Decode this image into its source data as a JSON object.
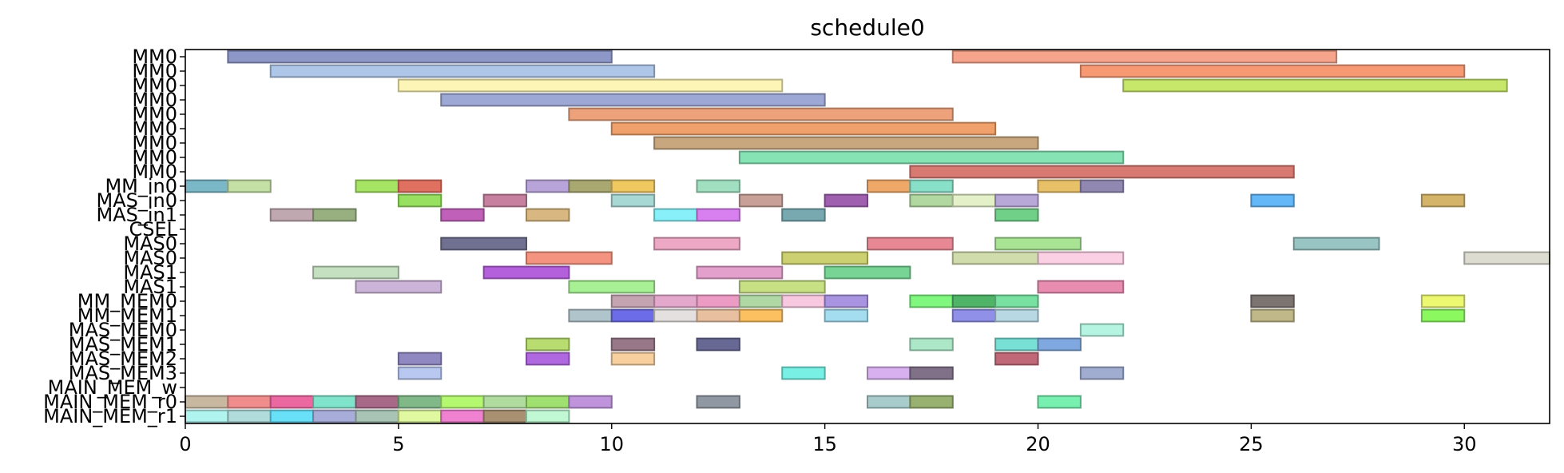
{
  "chart_data": {
    "type": "gantt",
    "title": "schedule0",
    "xlim": [
      0,
      32
    ],
    "x_ticks": [
      0,
      5,
      10,
      15,
      20,
      25,
      30
    ],
    "rows": [
      "MM0",
      "MM0",
      "MM0",
      "MM0",
      "MM0",
      "MM0",
      "MM0",
      "MM0",
      "MM0",
      "MM_in0",
      "MAS_in0",
      "MAS_in1",
      "CSEL",
      "MAS0",
      "MAS0",
      "MAS1",
      "MAS1",
      "MM_MEM0",
      "MM_MEM1",
      "MAS_MEM0",
      "MAS_MEM1",
      "MAS_MEM2",
      "MAS_MEM3",
      "MAIN_MEM_w",
      "MAIN_MEM_r0",
      "MAIN_MEM_r1"
    ],
    "tasks": [
      {
        "row": 0,
        "start": 1,
        "end": 10,
        "color": "#8e98c8"
      },
      {
        "row": 0,
        "start": 18,
        "end": 27,
        "color": "#f7a48c"
      },
      {
        "row": 1,
        "start": 2,
        "end": 11,
        "color": "#aec7e8"
      },
      {
        "row": 1,
        "start": 21,
        "end": 30,
        "color": "#f79a74"
      },
      {
        "row": 2,
        "start": 5,
        "end": 14,
        "color": "#fdf5b5"
      },
      {
        "row": 2,
        "start": 22,
        "end": 31,
        "color": "#c6e76a"
      },
      {
        "row": 3,
        "start": 6,
        "end": 15,
        "color": "#9ea8d4"
      },
      {
        "row": 4,
        "start": 9,
        "end": 18,
        "color": "#eda27c"
      },
      {
        "row": 5,
        "start": 10,
        "end": 19,
        "color": "#f0a06a"
      },
      {
        "row": 6,
        "start": 11,
        "end": 20,
        "color": "#c8a67e"
      },
      {
        "row": 7,
        "start": 13,
        "end": 22,
        "color": "#86e4b4"
      },
      {
        "row": 8,
        "start": 17,
        "end": 26,
        "color": "#d87a72"
      },
      {
        "row": 9,
        "start": 0,
        "end": 1,
        "color": "#7ab8c8"
      },
      {
        "row": 9,
        "start": 1,
        "end": 2,
        "color": "#c4e0a4"
      },
      {
        "row": 9,
        "start": 4,
        "end": 5,
        "color": "#a6e464"
      },
      {
        "row": 9,
        "start": 5,
        "end": 6,
        "color": "#e07060"
      },
      {
        "row": 9,
        "start": 8,
        "end": 9,
        "color": "#b8a4d8"
      },
      {
        "row": 9,
        "start": 9,
        "end": 10,
        "color": "#a8a870"
      },
      {
        "row": 9,
        "start": 10,
        "end": 11,
        "color": "#f0c860"
      },
      {
        "row": 9,
        "start": 12,
        "end": 13,
        "color": "#a0e0c0"
      },
      {
        "row": 9,
        "start": 16,
        "end": 17,
        "color": "#f0a868"
      },
      {
        "row": 9,
        "start": 17,
        "end": 18,
        "color": "#88e0c8"
      },
      {
        "row": 9,
        "start": 20,
        "end": 21,
        "color": "#e8c068"
      },
      {
        "row": 9,
        "start": 21,
        "end": 22,
        "color": "#9088b0"
      },
      {
        "row": 10,
        "start": 5,
        "end": 6,
        "color": "#98e060"
      },
      {
        "row": 10,
        "start": 7,
        "end": 8,
        "color": "#c880a0"
      },
      {
        "row": 10,
        "start": 10,
        "end": 11,
        "color": "#a8d8d4"
      },
      {
        "row": 10,
        "start": 13,
        "end": 14,
        "color": "#c8a098"
      },
      {
        "row": 10,
        "start": 15,
        "end": 16,
        "color": "#a060b0"
      },
      {
        "row": 10,
        "start": 17,
        "end": 18,
        "color": "#b0d8a0"
      },
      {
        "row": 10,
        "start": 18,
        "end": 19,
        "color": "#e4f0c8"
      },
      {
        "row": 10,
        "start": 19,
        "end": 20,
        "color": "#b8a8d8"
      },
      {
        "row": 10,
        "start": 25,
        "end": 26,
        "color": "#64b8f8"
      },
      {
        "row": 10,
        "start": 29,
        "end": 30,
        "color": "#d4b468"
      },
      {
        "row": 11,
        "start": 2,
        "end": 3,
        "color": "#c0a8b0"
      },
      {
        "row": 11,
        "start": 3,
        "end": 4,
        "color": "#98b080"
      },
      {
        "row": 11,
        "start": 6,
        "end": 7,
        "color": "#c060b8"
      },
      {
        "row": 11,
        "start": 8,
        "end": 9,
        "color": "#d8b880"
      },
      {
        "row": 11,
        "start": 11,
        "end": 12,
        "color": "#88f0f8"
      },
      {
        "row": 11,
        "start": 12,
        "end": 13,
        "color": "#d880f0"
      },
      {
        "row": 11,
        "start": 14,
        "end": 15,
        "color": "#78a8b0"
      },
      {
        "row": 11,
        "start": 19,
        "end": 20,
        "color": "#70d088"
      },
      {
        "row": 13,
        "start": 6,
        "end": 8,
        "color": "#707090"
      },
      {
        "row": 13,
        "start": 11,
        "end": 13,
        "color": "#eca8c4"
      },
      {
        "row": 13,
        "start": 16,
        "end": 18,
        "color": "#e88894"
      },
      {
        "row": 13,
        "start": 19,
        "end": 21,
        "color": "#a8e494"
      },
      {
        "row": 13,
        "start": 26,
        "end": 28,
        "color": "#98c4c4"
      },
      {
        "row": 14,
        "start": 8,
        "end": 10,
        "color": "#f49480"
      },
      {
        "row": 14,
        "start": 14,
        "end": 16,
        "color": "#ccd070"
      },
      {
        "row": 14,
        "start": 18,
        "end": 20,
        "color": "#d0dcac"
      },
      {
        "row": 14,
        "start": 20,
        "end": 22,
        "color": "#fcd0e4"
      },
      {
        "row": 14,
        "start": 30,
        "end": 32,
        "color": "#dcdcd0"
      },
      {
        "row": 15,
        "start": 3,
        "end": 5,
        "color": "#c4e0c0"
      },
      {
        "row": 15,
        "start": 7,
        "end": 9,
        "color": "#b460dc"
      },
      {
        "row": 15,
        "start": 12,
        "end": 14,
        "color": "#e4a0cc"
      },
      {
        "row": 15,
        "start": 15,
        "end": 17,
        "color": "#78d494"
      },
      {
        "row": 16,
        "start": 4,
        "end": 6,
        "color": "#ccb4d8"
      },
      {
        "row": 16,
        "start": 9,
        "end": 11,
        "color": "#a8f094"
      },
      {
        "row": 16,
        "start": 13,
        "end": 15,
        "color": "#c8e084"
      },
      {
        "row": 16,
        "start": 20,
        "end": 22,
        "color": "#e88cb0"
      },
      {
        "row": 17,
        "start": 10,
        "end": 11,
        "color": "#c4a4b0"
      },
      {
        "row": 17,
        "start": 11,
        "end": 12,
        "color": "#e4a8cc"
      },
      {
        "row": 17,
        "start": 12,
        "end": 13,
        "color": "#ec9cc4"
      },
      {
        "row": 17,
        "start": 13,
        "end": 14,
        "color": "#b0d8a4"
      },
      {
        "row": 17,
        "start": 14,
        "end": 15,
        "color": "#f8c8e0"
      },
      {
        "row": 17,
        "start": 15,
        "end": 16,
        "color": "#a894e0"
      },
      {
        "row": 17,
        "start": 17,
        "end": 18,
        "color": "#80f880"
      },
      {
        "row": 17,
        "start": 18,
        "end": 19,
        "color": "#50b468"
      },
      {
        "row": 17,
        "start": 19,
        "end": 20,
        "color": "#78e0a0"
      },
      {
        "row": 17,
        "start": 25,
        "end": 26,
        "color": "#7c7470"
      },
      {
        "row": 17,
        "start": 29,
        "end": 30,
        "color": "#ecf870"
      },
      {
        "row": 18,
        "start": 9,
        "end": 10,
        "color": "#b0c4cc"
      },
      {
        "row": 18,
        "start": 10,
        "end": 11,
        "color": "#6c6ce8"
      },
      {
        "row": 18,
        "start": 11,
        "end": 12,
        "color": "#e4e0e0"
      },
      {
        "row": 18,
        "start": 12,
        "end": 13,
        "color": "#e8c0a0"
      },
      {
        "row": 18,
        "start": 13,
        "end": 14,
        "color": "#fcc060"
      },
      {
        "row": 18,
        "start": 15,
        "end": 16,
        "color": "#a4dcf0"
      },
      {
        "row": 18,
        "start": 18,
        "end": 19,
        "color": "#9090e8"
      },
      {
        "row": 18,
        "start": 19,
        "end": 20,
        "color": "#b8d8e4"
      },
      {
        "row": 18,
        "start": 25,
        "end": 26,
        "color": "#c0b888"
      },
      {
        "row": 18,
        "start": 29,
        "end": 30,
        "color": "#8cf860"
      },
      {
        "row": 19,
        "start": 21,
        "end": 22,
        "color": "#b4f4e0"
      },
      {
        "row": 20,
        "start": 8,
        "end": 9,
        "color": "#b8dc70"
      },
      {
        "row": 20,
        "start": 10,
        "end": 11,
        "color": "#987888"
      },
      {
        "row": 20,
        "start": 12,
        "end": 13,
        "color": "#686894"
      },
      {
        "row": 20,
        "start": 17,
        "end": 18,
        "color": "#ace8c8"
      },
      {
        "row": 20,
        "start": 19,
        "end": 20,
        "color": "#78e0d4"
      },
      {
        "row": 20,
        "start": 20,
        "end": 21,
        "color": "#80a8e0"
      },
      {
        "row": 21,
        "start": 5,
        "end": 6,
        "color": "#9088c0"
      },
      {
        "row": 21,
        "start": 8,
        "end": 9,
        "color": "#b068e0"
      },
      {
        "row": 21,
        "start": 10,
        "end": 11,
        "color": "#f8d0a0"
      },
      {
        "row": 21,
        "start": 19,
        "end": 20,
        "color": "#c06878"
      },
      {
        "row": 22,
        "start": 5,
        "end": 6,
        "color": "#b8c8f0"
      },
      {
        "row": 22,
        "start": 14,
        "end": 15,
        "color": "#78f0e4"
      },
      {
        "row": 22,
        "start": 16,
        "end": 17,
        "color": "#d8b0f0"
      },
      {
        "row": 22,
        "start": 17,
        "end": 18,
        "color": "#807088"
      },
      {
        "row": 22,
        "start": 21,
        "end": 22,
        "color": "#a0acd0"
      },
      {
        "row": 24,
        "start": 0,
        "end": 1,
        "color": "#c8b8a0"
      },
      {
        "row": 24,
        "start": 1,
        "end": 2,
        "color": "#f08c8c"
      },
      {
        "row": 24,
        "start": 2,
        "end": 3,
        "color": "#ec68a0"
      },
      {
        "row": 24,
        "start": 3,
        "end": 4,
        "color": "#80e4cc"
      },
      {
        "row": 24,
        "start": 4,
        "end": 5,
        "color": "#a86888"
      },
      {
        "row": 24,
        "start": 5,
        "end": 6,
        "color": "#80b888"
      },
      {
        "row": 24,
        "start": 6,
        "end": 7,
        "color": "#b4f870"
      },
      {
        "row": 24,
        "start": 7,
        "end": 8,
        "color": "#b0dca0"
      },
      {
        "row": 24,
        "start": 8,
        "end": 9,
        "color": "#a0e070"
      },
      {
        "row": 24,
        "start": 9,
        "end": 10,
        "color": "#c094dc"
      },
      {
        "row": 24,
        "start": 12,
        "end": 13,
        "color": "#9098a4"
      },
      {
        "row": 24,
        "start": 16,
        "end": 17,
        "color": "#a8cccc"
      },
      {
        "row": 24,
        "start": 17,
        "end": 18,
        "color": "#98b070"
      },
      {
        "row": 24,
        "start": 20,
        "end": 21,
        "color": "#78f0b0"
      },
      {
        "row": 25,
        "start": 0,
        "end": 1,
        "color": "#b0f4f0"
      },
      {
        "row": 25,
        "start": 1,
        "end": 2,
        "color": "#b0dcdc"
      },
      {
        "row": 25,
        "start": 2,
        "end": 3,
        "color": "#68e0f8"
      },
      {
        "row": 25,
        "start": 3,
        "end": 4,
        "color": "#a8acd8"
      },
      {
        "row": 25,
        "start": 4,
        "end": 5,
        "color": "#a8c4b4"
      },
      {
        "row": 25,
        "start": 5,
        "end": 6,
        "color": "#e0f8a0"
      },
      {
        "row": 25,
        "start": 6,
        "end": 7,
        "color": "#f080d0"
      },
      {
        "row": 25,
        "start": 7,
        "end": 8,
        "color": "#a89070"
      },
      {
        "row": 25,
        "start": 8,
        "end": 9,
        "color": "#c0f8d4"
      }
    ]
  }
}
